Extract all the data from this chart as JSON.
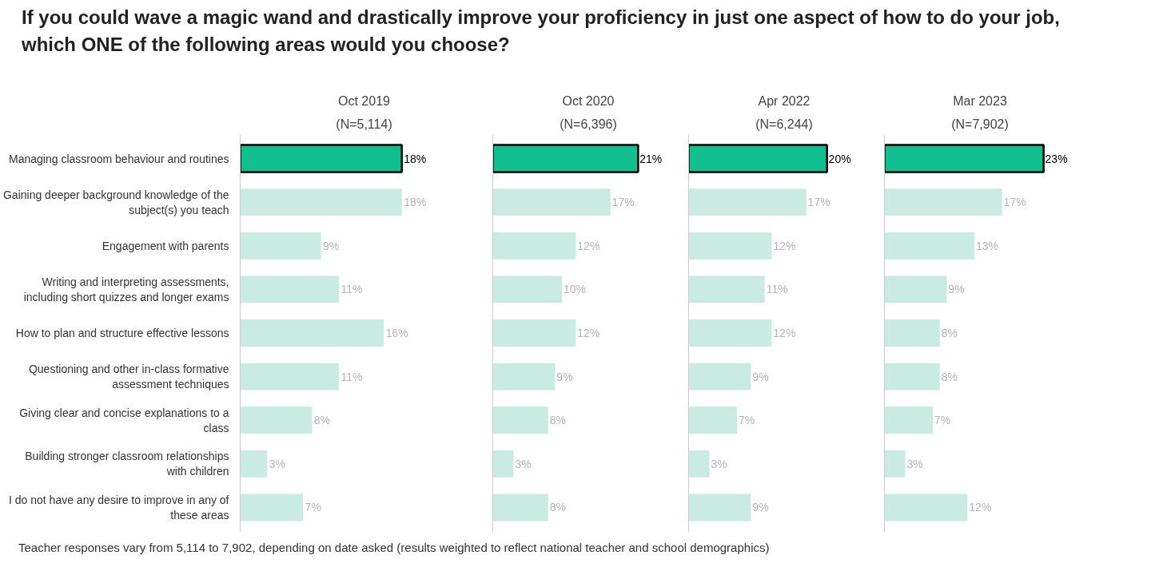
{
  "chart_data": [
    {
      "type": "other",
      "title": "If you could wave a magic wand and drastically improve your proficiency in just one aspect of how to do your job, which ONE of the following areas would you choose?",
      "annotations": [
        "Teacher responses vary from 5,114 to 7,902, depending on date asked (results weighted to reflect national teacher and school demographics)"
      ]
    },
    {
      "type": "bar",
      "orientation": "horizontal",
      "title": "Oct 2019",
      "subtitle": "(N=5,114)",
      "tick_labels": "y",
      "categories": [
        "Managing classroom behaviour and routines",
        "Gaining deeper background knowledge of the subject(s) you teach",
        "Engagement with parents",
        "Writing and interpreting assessments, including short quizzes and longer exams",
        "How to plan and structure effective lessons",
        "Questioning and other in-class formative assessment techniques",
        "Giving clear and concise explanations to a class",
        "Building stronger classroom relationships with children",
        "I do not have any desire to improve in any of these areas"
      ],
      "values": [
        18,
        18,
        9,
        11,
        16,
        11,
        8,
        3,
        7
      ],
      "value_labels": [
        "18%",
        "18%",
        "9%",
        "11%",
        "16%",
        "11%",
        "8%",
        "3%",
        "7%"
      ],
      "colors": [
        "#12bf8e",
        "#c9ebe1",
        "#c9ebe1",
        "#c9ebe1",
        "#c9ebe1",
        "#c9ebe1",
        "#c9ebe1",
        "#c9ebe1",
        "#c9ebe1"
      ]
    },
    {
      "type": "bar",
      "orientation": "horizontal",
      "title": "Oct 2020",
      "subtitle": "(N=6,396)",
      "tick_labels": false,
      "categories": [
        "Managing classroom behaviour and routines",
        "Gaining deeper background knowledge of the subject(s) you teach",
        "Engagement with parents",
        "Writing and interpreting assessments, including short quizzes and longer exams",
        "How to plan and structure effective lessons",
        "Questioning and other in-class formative assessment techniques",
        "Giving clear and concise explanations to a class",
        "Building stronger classroom relationships with children",
        "I do not have any desire to improve in any of these areas"
      ],
      "values": [
        21,
        17,
        12,
        10,
        12,
        9,
        8,
        3,
        8
      ],
      "value_labels": [
        "21%",
        "17%",
        "12%",
        "10%",
        "12%",
        "9%",
        "8%",
        "3%",
        "8%"
      ],
      "colors": [
        "#12bf8e",
        "#c9ebe1",
        "#c9ebe1",
        "#c9ebe1",
        "#c9ebe1",
        "#c9ebe1",
        "#c9ebe1",
        "#c9ebe1",
        "#c9ebe1"
      ]
    },
    {
      "type": "bar",
      "orientation": "horizontal",
      "title": "Apr 2022",
      "subtitle": "(N=6,244)",
      "tick_labels": false,
      "categories": [
        "Managing classroom behaviour and routines",
        "Gaining deeper background knowledge of the subject(s) you teach",
        "Engagement with parents",
        "Writing and interpreting assessments, including short quizzes and longer exams",
        "How to plan and structure effective lessons",
        "Questioning and other in-class formative assessment techniques",
        "Giving clear and concise explanations to a class",
        "Building stronger classroom relationships with children",
        "I do not have any desire to improve in any of these areas"
      ],
      "values": [
        20,
        17,
        12,
        11,
        12,
        9,
        7,
        3,
        9
      ],
      "value_labels": [
        "20%",
        "17%",
        "12%",
        "11%",
        "12%",
        "9%",
        "7%",
        "3%",
        "9%"
      ],
      "colors": [
        "#12bf8e",
        "#c9ebe1",
        "#c9ebe1",
        "#c9ebe1",
        "#c9ebe1",
        "#c9ebe1",
        "#c9ebe1",
        "#c9ebe1",
        "#c9ebe1"
      ]
    },
    {
      "type": "bar",
      "orientation": "horizontal",
      "title": "Mar 2023",
      "subtitle": "(N=7,902)",
      "tick_labels": false,
      "categories": [
        "Managing classroom behaviour and routines",
        "Gaining deeper background knowledge of the subject(s) you teach",
        "Engagement with parents",
        "Writing and interpreting assessments, including short quizzes and longer exams",
        "How to plan and structure effective lessons",
        "Questioning and other in-class formative assessment techniques",
        "Giving clear and concise explanations to a class",
        "Building stronger classroom relationships with children",
        "I do not have any desire to improve in any of these areas"
      ],
      "values": [
        23,
        17,
        13,
        9,
        8,
        8,
        7,
        3,
        12
      ],
      "value_labels": [
        "23%",
        "17%",
        "13%",
        "9%",
        "8%",
        "8%",
        "7%",
        "3%",
        "12%"
      ],
      "colors": [
        "#12bf8e",
        "#c9ebe1",
        "#c9ebe1",
        "#c9ebe1",
        "#c9ebe1",
        "#c9ebe1",
        "#c9ebe1",
        "#c9ebe1",
        "#c9ebe1"
      ]
    }
  ]
}
